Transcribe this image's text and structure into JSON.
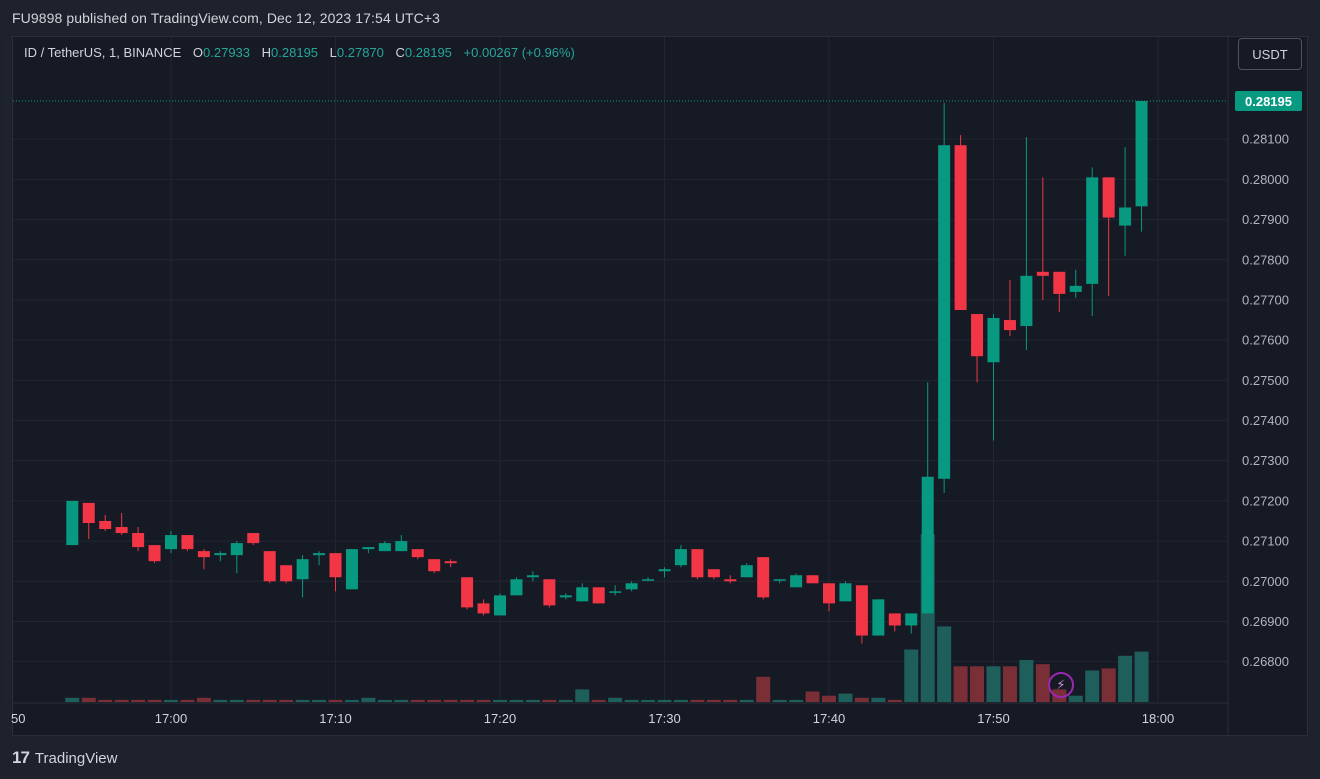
{
  "header": {
    "published_line": "FU9898 published on TradingView.com, Dec 12, 2023 17:54 UTC+3"
  },
  "legend": {
    "symbol": "ID / TetherUS, 1, BINANCE",
    "o_label": "O",
    "o_value": "0.27933",
    "h_label": "H",
    "h_value": "0.28195",
    "l_label": "L",
    "l_value": "0.27870",
    "c_label": "C",
    "c_value": "0.28195",
    "change": "+0.00267 (+0.96%)"
  },
  "currency_button": "USDT",
  "last_price_label": "0.28195",
  "footer": {
    "logo_mark": "17",
    "logo_text": "TradingView"
  },
  "colors": {
    "up": "#089981",
    "down": "#f23645",
    "vol_up": "#1e5e5b",
    "vol_down": "#7a2e35",
    "price_tag": "#089981",
    "grid": "#222634"
  },
  "chart_data": {
    "type": "candlestick",
    "symbol": "ID / TetherUS",
    "interval": "1",
    "exchange": "BINANCE",
    "ylim": [
      0.2671,
      0.2824
    ],
    "y_ticks": [
      "0.28100",
      "0.28000",
      "0.27900",
      "0.27800",
      "0.27700",
      "0.27600",
      "0.27500",
      "0.27400",
      "0.27300",
      "0.27200",
      "0.27100",
      "0.27000",
      "0.26900",
      "0.26800"
    ],
    "x_ticks": [
      "50",
      "17:00",
      "17:10",
      "17:20",
      "17:30",
      "17:40",
      "17:50",
      "18:00"
    ],
    "x_tick_minutes": [
      -10,
      0,
      10,
      20,
      30,
      40,
      50,
      60
    ],
    "volume_max": 4.0,
    "candles": [
      {
        "t": "16:54",
        "o": 0.2709,
        "h": 0.272,
        "l": 0.2709,
        "c": 0.272,
        "v": 0.1
      },
      {
        "t": "16:55",
        "o": 0.27195,
        "h": 0.27195,
        "l": 0.27105,
        "c": 0.27145,
        "v": 0.1
      },
      {
        "t": "16:56",
        "o": 0.2715,
        "h": 0.27165,
        "l": 0.27125,
        "c": 0.2713,
        "v": 0.05
      },
      {
        "t": "16:57",
        "o": 0.27135,
        "h": 0.2717,
        "l": 0.27115,
        "c": 0.2712,
        "v": 0.05
      },
      {
        "t": "16:58",
        "o": 0.2712,
        "h": 0.27135,
        "l": 0.27075,
        "c": 0.27085,
        "v": 0.05
      },
      {
        "t": "16:59",
        "o": 0.2709,
        "h": 0.2709,
        "l": 0.27045,
        "c": 0.2705,
        "v": 0.05
      },
      {
        "t": "17:00",
        "o": 0.2708,
        "h": 0.27125,
        "l": 0.2707,
        "c": 0.27115,
        "v": 0.05
      },
      {
        "t": "17:01",
        "o": 0.27115,
        "h": 0.27115,
        "l": 0.27075,
        "c": 0.2708,
        "v": 0.05
      },
      {
        "t": "17:02",
        "o": 0.27075,
        "h": 0.2708,
        "l": 0.2703,
        "c": 0.2706,
        "v": 0.1
      },
      {
        "t": "17:03",
        "o": 0.27065,
        "h": 0.27075,
        "l": 0.2705,
        "c": 0.2707,
        "v": 0.05
      },
      {
        "t": "17:04",
        "o": 0.27065,
        "h": 0.271,
        "l": 0.2702,
        "c": 0.27095,
        "v": 0.05
      },
      {
        "t": "17:05",
        "o": 0.2712,
        "h": 0.2712,
        "l": 0.2709,
        "c": 0.27095,
        "v": 0.05
      },
      {
        "t": "17:06",
        "o": 0.27075,
        "h": 0.27075,
        "l": 0.26995,
        "c": 0.27,
        "v": 0.05
      },
      {
        "t": "17:07",
        "o": 0.2704,
        "h": 0.2704,
        "l": 0.26995,
        "c": 0.27,
        "v": 0.05
      },
      {
        "t": "17:08",
        "o": 0.27005,
        "h": 0.27065,
        "l": 0.2696,
        "c": 0.27055,
        "v": 0.05
      },
      {
        "t": "17:09",
        "o": 0.27065,
        "h": 0.27075,
        "l": 0.2704,
        "c": 0.2707,
        "v": 0.05
      },
      {
        "t": "17:10",
        "o": 0.2707,
        "h": 0.2707,
        "l": 0.26975,
        "c": 0.2701,
        "v": 0.05
      },
      {
        "t": "17:11",
        "o": 0.2698,
        "h": 0.2708,
        "l": 0.2698,
        "c": 0.2708,
        "v": 0.05
      },
      {
        "t": "17:12",
        "o": 0.2708,
        "h": 0.27085,
        "l": 0.2707,
        "c": 0.27085,
        "v": 0.1
      },
      {
        "t": "17:13",
        "o": 0.27075,
        "h": 0.271,
        "l": 0.27075,
        "c": 0.27095,
        "v": 0.05
      },
      {
        "t": "17:14",
        "o": 0.27075,
        "h": 0.27115,
        "l": 0.27075,
        "c": 0.271,
        "v": 0.05
      },
      {
        "t": "17:15",
        "o": 0.2708,
        "h": 0.2708,
        "l": 0.27055,
        "c": 0.2706,
        "v": 0.05
      },
      {
        "t": "17:16",
        "o": 0.27055,
        "h": 0.27055,
        "l": 0.2702,
        "c": 0.27025,
        "v": 0.05
      },
      {
        "t": "17:17",
        "o": 0.2705,
        "h": 0.27055,
        "l": 0.27035,
        "c": 0.27045,
        "v": 0.05
      },
      {
        "t": "17:18",
        "o": 0.2701,
        "h": 0.2701,
        "l": 0.2693,
        "c": 0.26935,
        "v": 0.05
      },
      {
        "t": "17:19",
        "o": 0.26945,
        "h": 0.26955,
        "l": 0.26915,
        "c": 0.2692,
        "v": 0.05
      },
      {
        "t": "17:20",
        "o": 0.26915,
        "h": 0.2697,
        "l": 0.26915,
        "c": 0.26965,
        "v": 0.05
      },
      {
        "t": "17:21",
        "o": 0.26965,
        "h": 0.2701,
        "l": 0.26965,
        "c": 0.27005,
        "v": 0.05
      },
      {
        "t": "17:22",
        "o": 0.2701,
        "h": 0.27025,
        "l": 0.27,
        "c": 0.27015,
        "v": 0.05
      },
      {
        "t": "17:23",
        "o": 0.27005,
        "h": 0.27005,
        "l": 0.26935,
        "c": 0.2694,
        "v": 0.05
      },
      {
        "t": "17:24",
        "o": 0.2696,
        "h": 0.2697,
        "l": 0.26955,
        "c": 0.26965,
        "v": 0.05
      },
      {
        "t": "17:25",
        "o": 0.2695,
        "h": 0.26995,
        "l": 0.2695,
        "c": 0.26985,
        "v": 0.3
      },
      {
        "t": "17:26",
        "o": 0.26985,
        "h": 0.26985,
        "l": 0.26945,
        "c": 0.26945,
        "v": 0.05
      },
      {
        "t": "17:27",
        "o": 0.26975,
        "h": 0.2699,
        "l": 0.26965,
        "c": 0.26975,
        "v": 0.1
      },
      {
        "t": "17:28",
        "o": 0.2698,
        "h": 0.27,
        "l": 0.26975,
        "c": 0.26995,
        "v": 0.05
      },
      {
        "t": "17:29",
        "o": 0.27005,
        "h": 0.2701,
        "l": 0.27,
        "c": 0.27005,
        "v": 0.05
      },
      {
        "t": "17:30",
        "o": 0.27025,
        "h": 0.27035,
        "l": 0.2701,
        "c": 0.2703,
        "v": 0.05
      },
      {
        "t": "17:31",
        "o": 0.2704,
        "h": 0.2709,
        "l": 0.27035,
        "c": 0.2708,
        "v": 0.05
      },
      {
        "t": "17:32",
        "o": 0.2708,
        "h": 0.2708,
        "l": 0.27005,
        "c": 0.2701,
        "v": 0.05
      },
      {
        "t": "17:33",
        "o": 0.2703,
        "h": 0.2703,
        "l": 0.27005,
        "c": 0.2701,
        "v": 0.05
      },
      {
        "t": "17:34",
        "o": 0.27005,
        "h": 0.27015,
        "l": 0.26995,
        "c": 0.27,
        "v": 0.05
      },
      {
        "t": "17:35",
        "o": 0.2701,
        "h": 0.27045,
        "l": 0.2701,
        "c": 0.2704,
        "v": 0.05
      },
      {
        "t": "17:36",
        "o": 0.2706,
        "h": 0.2706,
        "l": 0.26955,
        "c": 0.2696,
        "v": 0.6
      },
      {
        "t": "17:37",
        "o": 0.27005,
        "h": 0.27005,
        "l": 0.26995,
        "c": 0.27005,
        "v": 0.05
      },
      {
        "t": "17:38",
        "o": 0.26985,
        "h": 0.2702,
        "l": 0.26985,
        "c": 0.27015,
        "v": 0.05
      },
      {
        "t": "17:39",
        "o": 0.27015,
        "h": 0.27015,
        "l": 0.26995,
        "c": 0.26995,
        "v": 0.25
      },
      {
        "t": "17:40",
        "o": 0.26995,
        "h": 0.26995,
        "l": 0.26925,
        "c": 0.26945,
        "v": 0.15
      },
      {
        "t": "17:41",
        "o": 0.2695,
        "h": 0.27,
        "l": 0.2695,
        "c": 0.26995,
        "v": 0.2
      },
      {
        "t": "17:42",
        "o": 0.2699,
        "h": 0.2699,
        "l": 0.26845,
        "c": 0.26865,
        "v": 0.1
      },
      {
        "t": "17:43",
        "o": 0.26865,
        "h": 0.26955,
        "l": 0.26865,
        "c": 0.26955,
        "v": 0.1
      },
      {
        "t": "17:44",
        "o": 0.2692,
        "h": 0.2692,
        "l": 0.26875,
        "c": 0.2689,
        "v": 0.05
      },
      {
        "t": "17:45",
        "o": 0.2689,
        "h": 0.2692,
        "l": 0.2687,
        "c": 0.2692,
        "v": 1.25
      },
      {
        "t": "17:46",
        "o": 0.2692,
        "h": 0.27495,
        "l": 0.2692,
        "c": 0.2726,
        "v": 4.0
      },
      {
        "t": "17:47",
        "o": 0.27255,
        "h": 0.2819,
        "l": 0.2722,
        "c": 0.28085,
        "v": 1.8
      },
      {
        "t": "17:48",
        "o": 0.28085,
        "h": 0.2811,
        "l": 0.27675,
        "c": 0.27675,
        "v": 0.85
      },
      {
        "t": "17:49",
        "o": 0.27665,
        "h": 0.27665,
        "l": 0.27495,
        "c": 0.2756,
        "v": 0.85
      },
      {
        "t": "17:50",
        "o": 0.27545,
        "h": 0.27665,
        "l": 0.2735,
        "c": 0.27655,
        "v": 0.85
      },
      {
        "t": "17:51",
        "o": 0.2765,
        "h": 0.2775,
        "l": 0.2761,
        "c": 0.27625,
        "v": 0.85
      },
      {
        "t": "17:52",
        "o": 0.27635,
        "h": 0.28105,
        "l": 0.27575,
        "c": 0.2776,
        "v": 1.0
      },
      {
        "t": "17:53",
        "o": 0.2777,
        "h": 0.28005,
        "l": 0.277,
        "c": 0.2776,
        "v": 0.9
      },
      {
        "t": "17:54",
        "o": 0.2777,
        "h": 0.2777,
        "l": 0.2767,
        "c": 0.27715,
        "v": 0.3
      },
      {
        "t": "17:55",
        "o": 0.2772,
        "h": 0.27775,
        "l": 0.27705,
        "c": 0.27735,
        "v": 0.15
      },
      {
        "t": "17:56",
        "o": 0.2774,
        "h": 0.2803,
        "l": 0.2766,
        "c": 0.28005,
        "v": 0.75
      },
      {
        "t": "17:57",
        "o": 0.28005,
        "h": 0.28005,
        "l": 0.2771,
        "c": 0.27905,
        "v": 0.8
      },
      {
        "t": "17:58",
        "o": 0.27885,
        "h": 0.2808,
        "l": 0.2781,
        "c": 0.2793,
        "v": 1.1
      },
      {
        "t": "17:59",
        "o": 0.27933,
        "h": 0.28195,
        "l": 0.2787,
        "c": 0.28195,
        "v": 1.2
      }
    ]
  }
}
